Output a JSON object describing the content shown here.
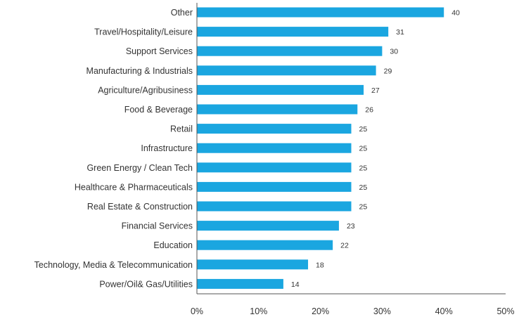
{
  "chart_data": {
    "type": "bar",
    "orientation": "horizontal",
    "title": "",
    "xlabel": "",
    "ylabel": "",
    "categories": [
      "Other",
      "Travel/Hospitality/Leisure",
      "Support Services",
      "Manufacturing & Industrials",
      "Agriculture/Agribusiness",
      "Food & Beverage",
      "Retail",
      "Infrastructure",
      "Green Energy / Clean Tech",
      "Healthcare & Pharmaceuticals",
      "Real Estate & Construction",
      "Financial Services",
      "Education",
      "Technology, Media & Telecommunication",
      "Power/Oil& Gas/Utilities"
    ],
    "values": [
      40,
      31,
      30,
      29,
      27,
      26,
      25,
      25,
      25,
      25,
      25,
      23,
      22,
      18,
      14
    ],
    "value_labels": [
      "40",
      "31",
      "30",
      "29",
      "27",
      "26",
      "25",
      "25",
      "25",
      "25",
      "25",
      "23",
      "22",
      "18",
      "14"
    ],
    "xlim": [
      0,
      50
    ],
    "x_ticks": [
      0,
      10,
      20,
      30,
      40,
      50
    ],
    "x_tick_labels": [
      "0%",
      "10%",
      "20%",
      "30%",
      "40%",
      "50%"
    ],
    "bar_color": "#1aa6e0",
    "axis_color": "#555555",
    "grid": false,
    "legend": "none"
  }
}
